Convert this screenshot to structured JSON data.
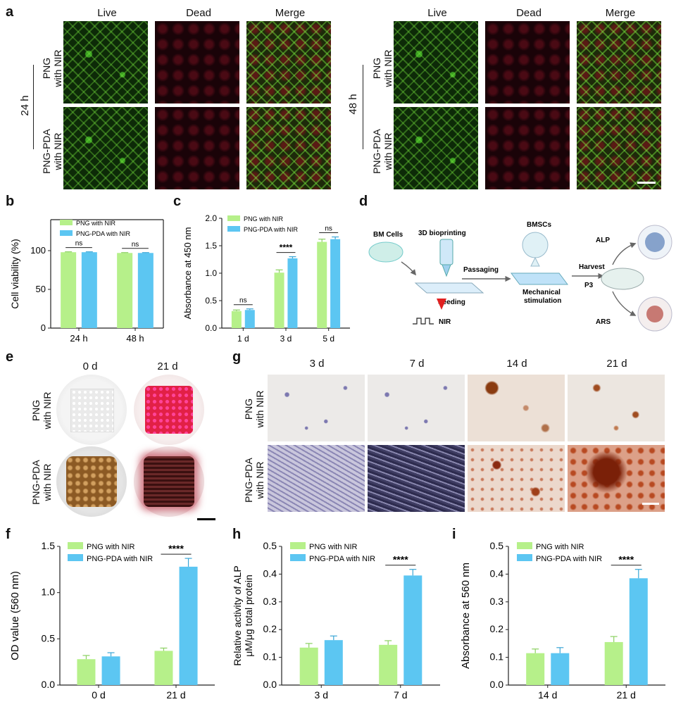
{
  "panels": {
    "a": "a",
    "b": "b",
    "c": "c",
    "d": "d",
    "e": "e",
    "f": "f",
    "g": "g",
    "h": "h",
    "i": "i"
  },
  "panel_a": {
    "col_headers": [
      "Live",
      "Dead",
      "Merge"
    ],
    "left_time": "24 h",
    "right_time": "48 h",
    "row_labels": [
      "PNG\nwith NIR",
      "PNG-PDA\nwith NIR"
    ]
  },
  "panel_d": {
    "labels": {
      "bm_cells": "BM Cells",
      "bioprinting": "3D bioprinting",
      "seeding": "Seeding",
      "nir": "NIR",
      "passaging": "Passaging",
      "bmscs": "BMSCs",
      "mech": "Mechanical\nstimulation",
      "harvest": "Harvest",
      "p3": "P3",
      "alp": "ALP",
      "ars": "ARS"
    }
  },
  "panel_e": {
    "col_headers": [
      "0 d",
      "21 d"
    ],
    "row_labels": [
      "PNG\nwith NIR",
      "PNG-PDA\nwith NIR"
    ]
  },
  "panel_g": {
    "col_headers": [
      "3 d",
      "7 d",
      "14 d",
      "21 d"
    ],
    "row_labels": [
      "PNG\nwith NIR",
      "PNG-PDA\nwith NIR"
    ]
  },
  "colors": {
    "series1": "#b6f08a",
    "series2": "#5cc6f2"
  },
  "chart_data": [
    {
      "panel": "b",
      "type": "bar",
      "categories": [
        "24 h",
        "48 h"
      ],
      "series": [
        {
          "name": "PNG with NIR",
          "values": [
            98,
            97
          ],
          "errors": [
            0.5,
            0.5
          ]
        },
        {
          "name": "PNG-PDA with NIR",
          "values": [
            98,
            97
          ],
          "errors": [
            0.5,
            0.5
          ]
        }
      ],
      "ylabel": "Cell viability (%)",
      "ylim": [
        0,
        140
      ],
      "yticks": [
        0,
        50,
        100
      ],
      "sig": [
        "ns",
        "ns"
      ]
    },
    {
      "panel": "c",
      "type": "bar",
      "categories": [
        "1 d",
        "3 d",
        "5 d"
      ],
      "series": [
        {
          "name": "PNG with NIR",
          "values": [
            0.31,
            1.01,
            1.57
          ],
          "errors": [
            0.02,
            0.05,
            0.05
          ]
        },
        {
          "name": "PNG-PDA with NIR",
          "values": [
            0.33,
            1.27,
            1.62
          ],
          "errors": [
            0.02,
            0.03,
            0.04
          ]
        }
      ],
      "ylabel": "Absorbance at 450 nm",
      "ylim": [
        0,
        2.0
      ],
      "yticks": [
        0.0,
        0.5,
        1.0,
        1.5,
        2.0
      ],
      "sig": [
        "ns",
        "****",
        "ns"
      ]
    },
    {
      "panel": "f",
      "type": "bar",
      "categories": [
        "0 d",
        "21 d"
      ],
      "series": [
        {
          "name": "PNG with NIR",
          "values": [
            0.28,
            0.37
          ],
          "errors": [
            0.04,
            0.03
          ]
        },
        {
          "name": "PNG-PDA with NIR",
          "values": [
            0.31,
            1.28
          ],
          "errors": [
            0.04,
            0.09
          ]
        }
      ],
      "ylabel": "OD value  (560 nm)",
      "ylim": [
        0,
        1.5
      ],
      "yticks": [
        0.0,
        0.5,
        1.0,
        1.5
      ],
      "sig": [
        "",
        "****"
      ]
    },
    {
      "panel": "h",
      "type": "bar",
      "categories": [
        "3 d",
        "7 d"
      ],
      "series": [
        {
          "name": "PNG with NIR",
          "values": [
            0.135,
            0.145
          ],
          "errors": [
            0.015,
            0.015
          ]
        },
        {
          "name": "PNG-PDA with NIR",
          "values": [
            0.162,
            0.395
          ],
          "errors": [
            0.015,
            0.022
          ]
        }
      ],
      "ylabel": "Relative activity of ALP\nμM/μg total protein",
      "ylim": [
        0,
        0.5
      ],
      "yticks": [
        0.0,
        0.1,
        0.2,
        0.3,
        0.4,
        0.5
      ],
      "sig": [
        "",
        "****"
      ]
    },
    {
      "panel": "i",
      "type": "bar",
      "categories": [
        "14 d",
        "21 d"
      ],
      "series": [
        {
          "name": "PNG with NIR",
          "values": [
            0.115,
            0.155
          ],
          "errors": [
            0.015,
            0.02
          ]
        },
        {
          "name": "PNG-PDA with NIR",
          "values": [
            0.115,
            0.385
          ],
          "errors": [
            0.02,
            0.032
          ]
        }
      ],
      "ylabel": "Absorbance at 560 nm",
      "ylim": [
        0,
        0.5
      ],
      "yticks": [
        0.0,
        0.1,
        0.2,
        0.3,
        0.4,
        0.5
      ],
      "sig": [
        "",
        "****"
      ]
    }
  ]
}
